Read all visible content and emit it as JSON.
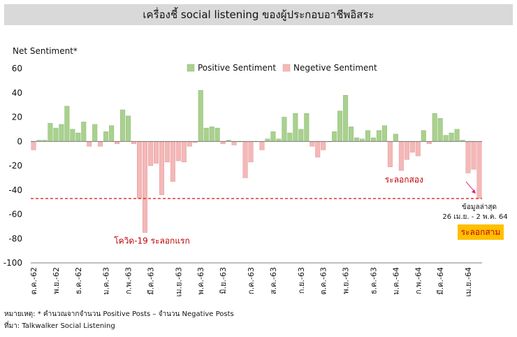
{
  "title": "เครื่องชี้ social listening ของผู้ประกอบอาชีพอิสระ",
  "footnotes": {
    "note": "หมายเหตุ: * คำนวณจากจำนวน Positive Posts – จำนวน Negative Posts",
    "source": "ที่มา: Talkwalker Social Listening"
  },
  "colors": {
    "positive": "#a9d18e",
    "negative": "#f4b8b8",
    "threshold": "#e02020",
    "annotation": "#c00000",
    "box": "#ffc000"
  },
  "chart_data": {
    "type": "bar",
    "ylabel": "Net Sentiment*",
    "ylim": [
      -100,
      60
    ],
    "yticks": [
      60,
      40,
      20,
      0,
      -20,
      -40,
      -60,
      -80,
      -100
    ],
    "grid": false,
    "legend_position": "top-center",
    "legend": [
      "Positive Sentiment",
      "Negetive Sentiment"
    ],
    "x_tick_labels": [
      {
        "index": 0,
        "label": "ต.ค.-62"
      },
      {
        "index": 4,
        "label": "พ.ย.-62"
      },
      {
        "index": 8,
        "label": "ธ.ค.-62"
      },
      {
        "index": 13,
        "label": "ม.ค.-63"
      },
      {
        "index": 17,
        "label": "ก.พ.-63"
      },
      {
        "index": 21,
        "label": "มี.ค.-63"
      },
      {
        "index": 26,
        "label": "เม.ย.-63"
      },
      {
        "index": 30,
        "label": "พ.ค.-63"
      },
      {
        "index": 34,
        "label": "มิ.ย.-63"
      },
      {
        "index": 39,
        "label": "ก.ค.-63"
      },
      {
        "index": 43,
        "label": "ส.ค.-63"
      },
      {
        "index": 48,
        "label": "ก.ย.-63"
      },
      {
        "index": 52,
        "label": "ต.ค.-63"
      },
      {
        "index": 56,
        "label": "พ.ย.-63"
      },
      {
        "index": 61,
        "label": "ธ.ค.-63"
      },
      {
        "index": 65,
        "label": "ม.ค.-64"
      },
      {
        "index": 69,
        "label": "ก.พ.-64"
      },
      {
        "index": 73,
        "label": "มี.ค.-64"
      },
      {
        "index": 78,
        "label": "เม.ย.-64"
      }
    ],
    "values": [
      -7,
      1,
      1,
      15,
      11,
      14,
      29,
      10,
      7,
      16,
      -4,
      14,
      -4,
      8,
      13,
      -2,
      26,
      21,
      -2,
      -47,
      -75,
      -20,
      -18,
      -44,
      -17,
      -33,
      -16,
      -17,
      -4,
      -1,
      42,
      11,
      12,
      11,
      -2,
      1,
      -3,
      0,
      -30,
      -17,
      0,
      -7,
      2,
      8,
      2,
      20,
      7,
      23,
      10,
      23,
      -4,
      -13,
      -7,
      0,
      8,
      25,
      38,
      12,
      3,
      2,
      9,
      3,
      9,
      13,
      -21,
      6,
      -24,
      -15,
      -9,
      -12,
      9,
      -2,
      23,
      19,
      5,
      7,
      10,
      1,
      -26,
      -23,
      -47
    ],
    "threshold": {
      "value": -47,
      "style": "dashed"
    },
    "annotations": [
      {
        "text": "โควิด-19 ระลอกแรก",
        "index": 20,
        "value": -75
      },
      {
        "text": "ระลอกสอง",
        "index": 66,
        "value": -47
      },
      {
        "text": "ข้อมูลล่าสุด",
        "index": 80,
        "value": -47
      },
      {
        "text": "26 เม.ย. - 2 พ.ค. 64",
        "index": 80,
        "value": -47
      },
      {
        "text": "ระลอกสาม",
        "index": 80,
        "value": -47
      }
    ]
  }
}
